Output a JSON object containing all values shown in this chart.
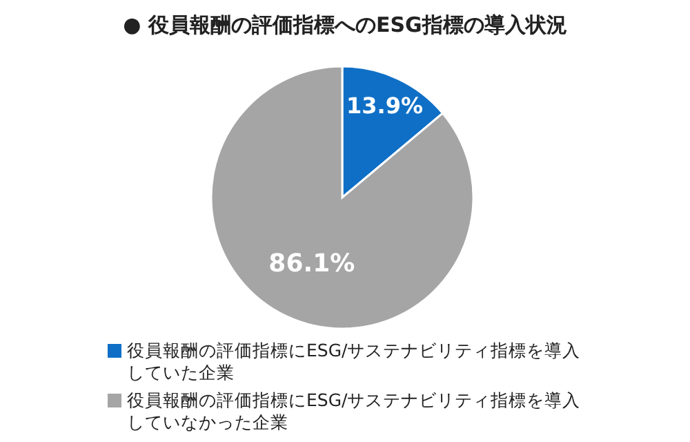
{
  "chart_data": {
    "type": "pie",
    "title": "● 役員報酬の評価指標へのESG指標の導入状況",
    "categories": [
      "役員報酬の評価指標にESG/サステナビリティ指標を導入していた企業",
      "役員報酬の評価指標にESG/サステナビリティ指標を導入していなかった企業"
    ],
    "values": [
      13.9,
      86.1
    ],
    "colors": [
      "#0f6fc6",
      "#a5a5a5"
    ],
    "value_labels": [
      "13.9%",
      "86.1%"
    ],
    "legend": "bottom"
  }
}
